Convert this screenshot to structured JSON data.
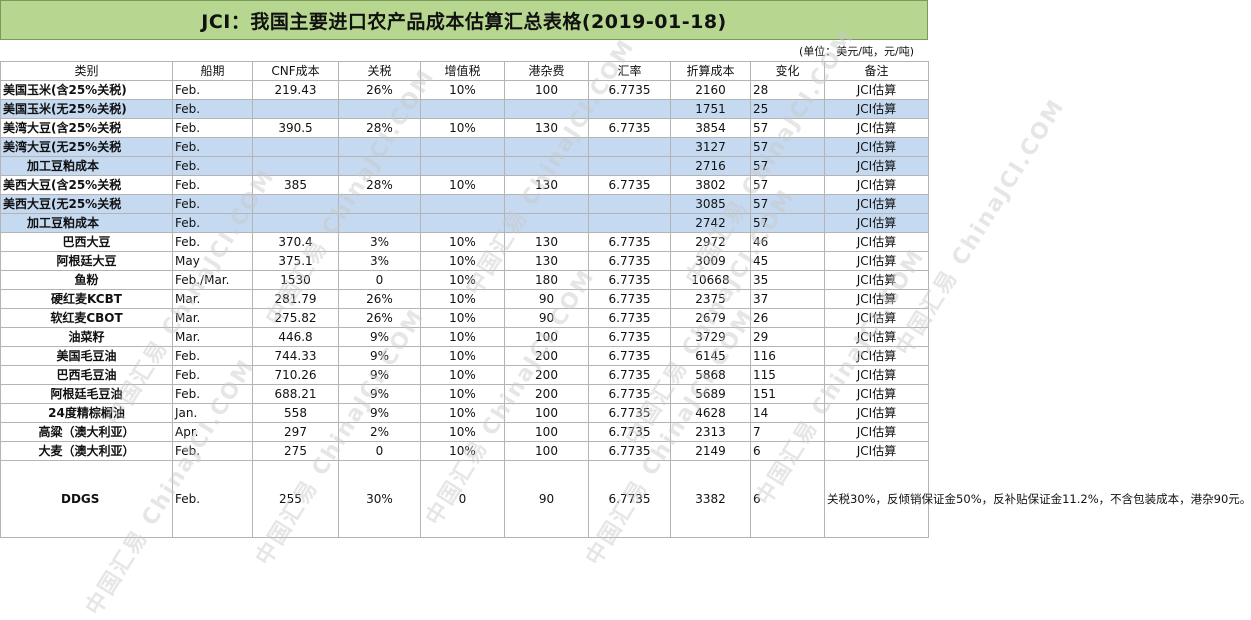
{
  "title": "JCI：我国主要进口农产品成本估算汇总表格(2019-01-18)",
  "unit": "(单位：美元/吨，元/吨)",
  "headers": [
    "类别",
    "船期",
    "CNF成本",
    "关税",
    "增值税",
    "港杂费",
    "汇率",
    "折算成本",
    "变化",
    "备注"
  ],
  "rows": [
    {
      "cat": "美国玉米(含25%关税)",
      "ship": "Feb.",
      "cnf": "219.43",
      "tariff": "26%",
      "vat": "10%",
      "port": "100",
      "fx": "6.7735",
      "cost": "2160",
      "chg": "28",
      "note": "JCI估算",
      "blue": false
    },
    {
      "cat": "美国玉米(无25%关税)",
      "ship": "Feb.",
      "cnf": "",
      "tariff": "",
      "vat": "",
      "port": "",
      "fx": "",
      "cost": "1751",
      "chg": "25",
      "note": "JCI估算",
      "blue": true
    },
    {
      "cat": "美湾大豆(含25%关税",
      "ship": "Feb.",
      "cnf": "390.5",
      "tariff": "28%",
      "vat": "10%",
      "port": "130",
      "fx": "6.7735",
      "cost": "3854",
      "chg": "57",
      "note": "JCI估算",
      "blue": false
    },
    {
      "cat": "美湾大豆(无25%关税",
      "ship": "Feb.",
      "cnf": "",
      "tariff": "",
      "vat": "",
      "port": "",
      "fx": "",
      "cost": "3127",
      "chg": "57",
      "note": "JCI估算",
      "blue": true
    },
    {
      "cat": "加工豆粕成本",
      "ship": "Feb.",
      "cnf": "",
      "tariff": "",
      "vat": "",
      "port": "",
      "fx": "",
      "cost": "2716",
      "chg": "57",
      "note": "JCI估算",
      "blue": true,
      "indent": true
    },
    {
      "cat": "美西大豆(含25%关税",
      "ship": "Feb.",
      "cnf": "385",
      "tariff": "28%",
      "vat": "10%",
      "port": "130",
      "fx": "6.7735",
      "cost": "3802",
      "chg": "57",
      "note": "JCI估算",
      "blue": false
    },
    {
      "cat": "美西大豆(无25%关税",
      "ship": "Feb.",
      "cnf": "",
      "tariff": "",
      "vat": "",
      "port": "",
      "fx": "",
      "cost": "3085",
      "chg": "57",
      "note": "JCI估算",
      "blue": true
    },
    {
      "cat": "加工豆粕成本",
      "ship": "Feb.",
      "cnf": "",
      "tariff": "",
      "vat": "",
      "port": "",
      "fx": "",
      "cost": "2742",
      "chg": "57",
      "note": "JCI估算",
      "blue": true,
      "indent": true
    },
    {
      "cat": "巴西大豆",
      "ship": "Feb.",
      "cnf": "370.4",
      "tariff": "3%",
      "vat": "10%",
      "port": "130",
      "fx": "6.7735",
      "cost": "2972",
      "chg": "46",
      "note": "JCI估算",
      "blue": false,
      "center": true
    },
    {
      "cat": "阿根廷大豆",
      "ship": "May",
      "cnf": "375.1",
      "tariff": "3%",
      "vat": "10%",
      "port": "130",
      "fx": "6.7735",
      "cost": "3009",
      "chg": "45",
      "note": "JCI估算",
      "blue": false,
      "center": true
    },
    {
      "cat": "鱼粉",
      "ship": "Feb./Mar.",
      "cnf": "1530",
      "tariff": "0",
      "vat": "10%",
      "port": "180",
      "fx": "6.7735",
      "cost": "10668",
      "chg": "35",
      "note": "JCI估算",
      "blue": false,
      "center": true
    },
    {
      "cat": "硬红麦KCBT",
      "ship": "Mar.",
      "cnf": "281.79",
      "tariff": "26%",
      "vat": "10%",
      "port": "90",
      "fx": "6.7735",
      "cost": "2375",
      "chg": "37",
      "note": "JCI估算",
      "blue": false,
      "center": true
    },
    {
      "cat": "软红麦CBOT",
      "ship": "Mar.",
      "cnf": "275.82",
      "tariff": "26%",
      "vat": "10%",
      "port": "90",
      "fx": "6.7735",
      "cost": "2679",
      "chg": "26",
      "note": "JCI估算",
      "blue": false,
      "center": true
    },
    {
      "cat": "油菜籽",
      "ship": "Mar.",
      "cnf": "446.8",
      "tariff": "9%",
      "vat": "10%",
      "port": "100",
      "fx": "6.7735",
      "cost": "3729",
      "chg": "29",
      "note": "JCI估算",
      "blue": false,
      "center": true
    },
    {
      "cat": "美国毛豆油",
      "ship": "Feb.",
      "cnf": "744.33",
      "tariff": "9%",
      "vat": "10%",
      "port": "200",
      "fx": "6.7735",
      "cost": "6145",
      "chg": "116",
      "note": "JCI估算",
      "blue": false,
      "center": true
    },
    {
      "cat": "巴西毛豆油",
      "ship": "Feb.",
      "cnf": "710.26",
      "tariff": "9%",
      "vat": "10%",
      "port": "200",
      "fx": "6.7735",
      "cost": "5868",
      "chg": "115",
      "note": "JCI估算",
      "blue": false,
      "center": true
    },
    {
      "cat": "阿根廷毛豆油",
      "ship": "Feb.",
      "cnf": "688.21",
      "tariff": "9%",
      "vat": "10%",
      "port": "200",
      "fx": "6.7735",
      "cost": "5689",
      "chg": "151",
      "note": "JCI估算",
      "blue": false,
      "center": true
    },
    {
      "cat": "24度精棕榈油",
      "ship": "Jan.",
      "cnf": "558",
      "tariff": "9%",
      "vat": "10%",
      "port": "100",
      "fx": "6.7735",
      "cost": "4628",
      "chg": "14",
      "note": "JCI估算",
      "blue": false,
      "center": true
    },
    {
      "cat": "高粱（澳大利亚）",
      "ship": "Apr.",
      "cnf": "297",
      "tariff": "2%",
      "vat": "10%",
      "port": "100",
      "fx": "6.7735",
      "cost": "2313",
      "chg": "7",
      "note": "JCI估算",
      "blue": false,
      "center": true
    },
    {
      "cat": "大麦（澳大利亚）",
      "ship": "Feb.",
      "cnf": "275",
      "tariff": "0",
      "vat": "10%",
      "port": "100",
      "fx": "6.7735",
      "cost": "2149",
      "chg": "6",
      "note": "JCI估算",
      "blue": false,
      "center": true
    },
    {
      "cat": "DDGS",
      "ship": "Feb.",
      "cnf": "255",
      "tariff": "30%",
      "vat": "0",
      "port": "90",
      "fx": "6.7735",
      "cost": "3382",
      "chg": "6",
      "note": "关税30%，反倾销保证金50%，反补贴保证金11.2%，不含包装成本，港杂90元。",
      "blue": false,
      "center": true,
      "tall": true
    }
  ],
  "watermark": "中国汇易 ChinaJCI.COM"
}
